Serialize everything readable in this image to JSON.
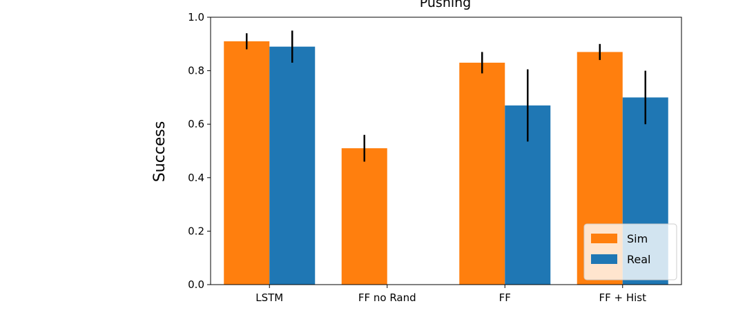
{
  "chart_data": {
    "type": "bar",
    "title": "Pushing",
    "ylabel": "Success",
    "xlabel": "",
    "ylim": [
      0.0,
      1.0
    ],
    "yticks": [
      "0.0",
      "0.2",
      "0.4",
      "0.6",
      "0.8",
      "1.0"
    ],
    "grid": false,
    "legend_position": "bottom-right",
    "categories": [
      "LSTM",
      "FF no Rand",
      "FF",
      "FF + Hist"
    ],
    "series": [
      {
        "name": "Sim",
        "color": "#ff7f0e",
        "values": [
          0.91,
          0.51,
          0.83,
          0.87
        ],
        "errors": [
          0.03,
          0.05,
          0.04,
          0.03
        ]
      },
      {
        "name": "Real",
        "color": "#1f77b4",
        "values": [
          0.89,
          null,
          0.67,
          0.7
        ],
        "errors": [
          0.06,
          null,
          0.135,
          0.1
        ]
      }
    ]
  }
}
